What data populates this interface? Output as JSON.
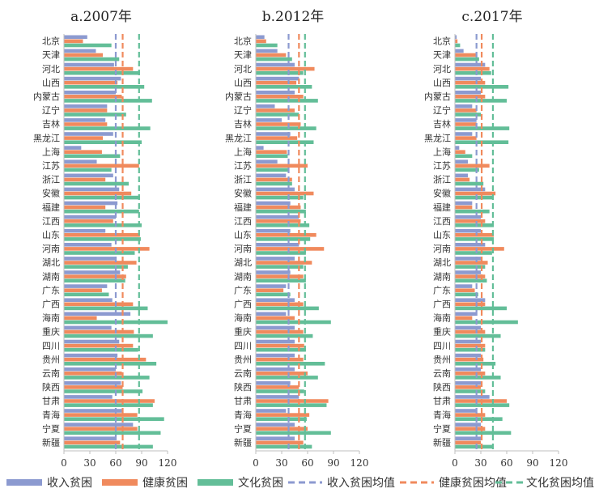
{
  "colors": {
    "income": "#8c9ad0",
    "health": "#f08a5d",
    "culture": "#63be98",
    "axis": "#bfbfbf",
    "text": "#333333"
  },
  "categories": [
    "北京",
    "天津",
    "河北",
    "山西",
    "内蒙古",
    "辽宁",
    "吉林",
    "黑龙江",
    "上海",
    "江苏",
    "浙江",
    "安徽",
    "福建",
    "江西",
    "山东",
    "河南",
    "湖北",
    "湖南",
    "广东",
    "广西",
    "海南",
    "重庆",
    "四川",
    "贵州",
    "云南",
    "陕西",
    "甘肃",
    "青海",
    "宁夏",
    "新疆"
  ],
  "legend": {
    "income": "收入贫困",
    "health": "健康贫困",
    "culture": "文化贫困",
    "income_mean": "收入贫困均值",
    "health_mean": "健康贫困均值",
    "culture_mean": "文化贫困均值"
  },
  "chart_data": [
    {
      "type": "bar",
      "orientation": "horizontal",
      "title": "a.2007年",
      "categories": [
        "北京",
        "天津",
        "河北",
        "山西",
        "内蒙古",
        "辽宁",
        "吉林",
        "黑龙江",
        "上海",
        "江苏",
        "浙江",
        "安徽",
        "福建",
        "江西",
        "山东",
        "河南",
        "湖北",
        "湖南",
        "广东",
        "广西",
        "海南",
        "重庆",
        "四川",
        "贵州",
        "云南",
        "陕西",
        "甘肃",
        "青海",
        "宁夏",
        "新疆"
      ],
      "series": [
        {
          "name": "收入贫困",
          "values": [
            27,
            37,
            58,
            66,
            60,
            50,
            48,
            57,
            20,
            38,
            57,
            64,
            62,
            60,
            48,
            55,
            61,
            65,
            50,
            56,
            77,
            55,
            64,
            62,
            60,
            66,
            56,
            67,
            80,
            60
          ]
        },
        {
          "name": "健康贫困",
          "values": [
            22,
            45,
            80,
            62,
            67,
            50,
            50,
            45,
            44,
            87,
            48,
            78,
            48,
            57,
            88,
            99,
            84,
            72,
            44,
            80,
            38,
            81,
            80,
            95,
            67,
            68,
            105,
            85,
            85,
            65
          ]
        },
        {
          "name": "文化贫困",
          "values": [
            55,
            64,
            88,
            93,
            102,
            72,
            100,
            90,
            65,
            55,
            75,
            88,
            87,
            90,
            89,
            82,
            74,
            71,
            52,
            97,
            120,
            103,
            86,
            107,
            99,
            91,
            103,
            116,
            112,
            103
          ]
        }
      ],
      "means": {
        "收入贫困均值": 60,
        "健康贫困均值": 68,
        "文化贫困均值": 87
      },
      "xlim": [
        0,
        120
      ],
      "xticks": [
        "0",
        "30",
        "60",
        "90",
        "120"
      ]
    },
    {
      "type": "bar",
      "orientation": "horizontal",
      "title": "b.2012年",
      "categories": [
        "北京",
        "天津",
        "河北",
        "山西",
        "内蒙古",
        "辽宁",
        "吉林",
        "黑龙江",
        "上海",
        "江苏",
        "浙江",
        "安徽",
        "福建",
        "江西",
        "山东",
        "河南",
        "湖北",
        "湖南",
        "广东",
        "广西",
        "海南",
        "重庆",
        "四川",
        "贵州",
        "云南",
        "陕西",
        "甘肃",
        "青海",
        "宁夏",
        "新疆"
      ],
      "series": [
        {
          "name": "收入贫困",
          "values": [
            10,
            25,
            45,
            50,
            45,
            22,
            30,
            40,
            9,
            25,
            35,
            45,
            40,
            50,
            40,
            50,
            45,
            40,
            35,
            45,
            35,
            45,
            45,
            45,
            45,
            40,
            50,
            35,
            45,
            45
          ]
        },
        {
          "name": "健康贫困",
          "values": [
            12,
            35,
            68,
            47,
            55,
            45,
            52,
            48,
            36,
            60,
            42,
            67,
            52,
            52,
            70,
            79,
            65,
            55,
            32,
            55,
            45,
            55,
            56,
            55,
            60,
            50,
            84,
            62,
            60,
            55
          ]
        },
        {
          "name": "文化贫困",
          "values": [
            25,
            42,
            55,
            65,
            72,
            50,
            70,
            67,
            37,
            38,
            42,
            55,
            58,
            62,
            63,
            58,
            55,
            58,
            40,
            73,
            87,
            66,
            58,
            80,
            72,
            56,
            82,
            59,
            87,
            65
          ]
        }
      ],
      "means": {
        "收入贫困均值": 38,
        "健康贫困均值": 50,
        "文化贫困均值": 57
      },
      "xlim": [
        0,
        120
      ],
      "xticks": [
        "0",
        "30",
        "60",
        "90",
        "120"
      ]
    },
    {
      "type": "bar",
      "orientation": "horizontal",
      "title": "c.2017年",
      "categories": [
        "北京",
        "天津",
        "河北",
        "山西",
        "内蒙古",
        "辽宁",
        "吉林",
        "黑龙江",
        "上海",
        "江苏",
        "浙江",
        "安徽",
        "福建",
        "江西",
        "山东",
        "河南",
        "湖北",
        "湖南",
        "广东",
        "广西",
        "海南",
        "重庆",
        "四川",
        "贵州",
        "云南",
        "陕西",
        "甘肃",
        "青海",
        "宁夏",
        "新疆"
      ],
      "series": [
        {
          "name": "收入贫困",
          "values": [
            2,
            10,
            35,
            30,
            30,
            20,
            25,
            20,
            5,
            15,
            15,
            35,
            20,
            30,
            30,
            35,
            30,
            30,
            20,
            35,
            25,
            30,
            30,
            30,
            30,
            30,
            40,
            25,
            30,
            30
          ]
        },
        {
          "name": "健康贫困",
          "values": [
            3,
            25,
            40,
            35,
            35,
            25,
            25,
            25,
            12,
            40,
            17,
            47,
            20,
            35,
            45,
            57,
            38,
            35,
            23,
            35,
            20,
            35,
            35,
            33,
            35,
            30,
            60,
            35,
            35,
            30
          ]
        },
        {
          "name": "文化贫困",
          "values": [
            6,
            28,
            42,
            62,
            60,
            30,
            63,
            62,
            20,
            28,
            33,
            45,
            40,
            45,
            45,
            43,
            35,
            37,
            27,
            60,
            73,
            53,
            35,
            47,
            53,
            35,
            63,
            55,
            65,
            45
          ]
        }
      ],
      "means": {
        "收入贫困均值": 25,
        "健康贫困均值": 31,
        "文化贫困均值": 44
      },
      "xlim": [
        0,
        120
      ],
      "xticks": [
        "0",
        "30",
        "60",
        "90",
        "120"
      ]
    }
  ]
}
